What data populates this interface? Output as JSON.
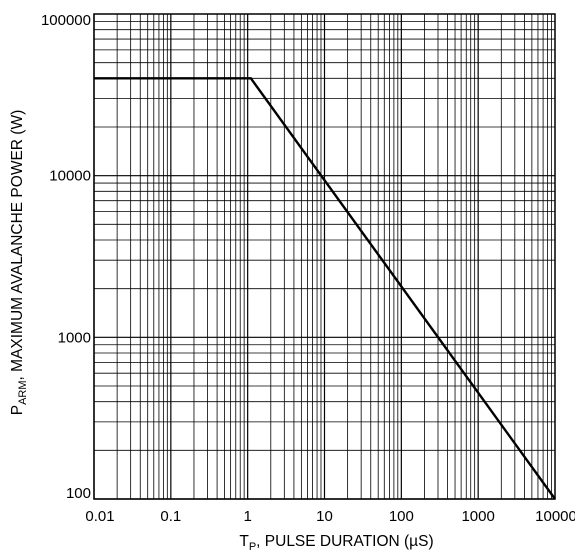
{
  "chart_data": {
    "type": "line",
    "x_scale": "log",
    "y_scale": "log",
    "xlim": [
      0.01,
      10000
    ],
    "ylim": [
      100,
      100000
    ],
    "grid": true,
    "x_ticks": [
      "0.01",
      "0.1",
      "1",
      "10",
      "100",
      "1000",
      "10000"
    ],
    "y_ticks": [
      "100",
      "1000",
      "10000",
      "100000"
    ],
    "xlabel": {
      "main": "T",
      "sub": "P",
      "rest": ", PULSE DURATION (µS)"
    },
    "ylabel": {
      "main": "P",
      "sub": "ARM",
      "rest": ", MAXIMUM AVALANCHE POWER (W)"
    },
    "series": [
      {
        "x": [
          0.01,
          1.1,
          10000
        ],
        "y": [
          40000,
          40000,
          100
        ]
      }
    ]
  }
}
